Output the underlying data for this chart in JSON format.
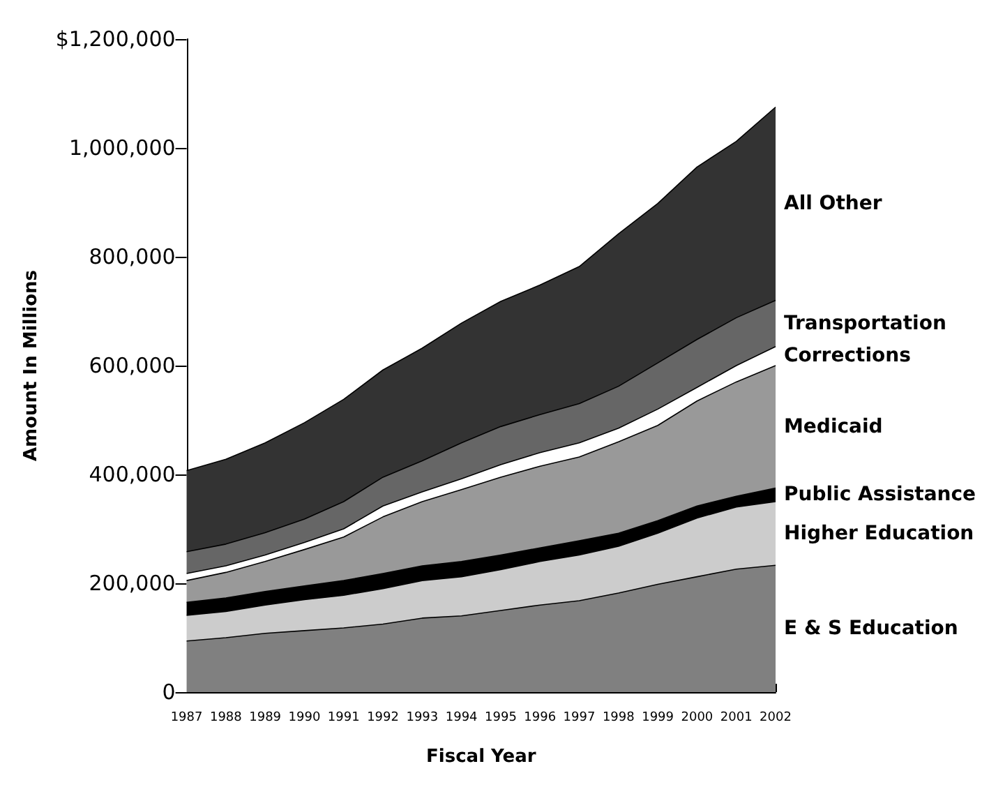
{
  "chart_data": {
    "type": "area",
    "stacked": true,
    "xlabel": "Fiscal Year",
    "ylabel": "Amount In Millions",
    "categories": [
      "1987",
      "1988",
      "1989",
      "1990",
      "1991",
      "1992",
      "1993",
      "1994",
      "1995",
      "1996",
      "1997",
      "1998",
      "1999",
      "2000",
      "2001",
      "2002"
    ],
    "series": [
      {
        "name": "E & S Education",
        "color": "#808080",
        "values": [
          94000,
          100000,
          108000,
          113000,
          118000,
          125000,
          136000,
          140000,
          150000,
          160000,
          168000,
          182000,
          198000,
          212000,
          226000,
          233000
        ]
      },
      {
        "name": "Higher Education",
        "color": "#cccccc",
        "values": [
          47000,
          48000,
          52000,
          57000,
          60000,
          65000,
          69000,
          72000,
          75000,
          80000,
          84000,
          86000,
          94000,
          108000,
          114000,
          117000
        ]
      },
      {
        "name": "Public Assistance",
        "color": "#000000",
        "values": [
          24000,
          25000,
          25000,
          25000,
          27000,
          28000,
          27000,
          28000,
          27000,
          25000,
          26000,
          24000,
          23000,
          22000,
          20000,
          25000
        ]
      },
      {
        "name": "Medicaid",
        "color": "#999999",
        "values": [
          40000,
          47000,
          55000,
          67000,
          80000,
          104000,
          118000,
          132000,
          143000,
          150000,
          154000,
          168000,
          175000,
          193000,
          210000,
          225000
        ]
      },
      {
        "name": "Corrections",
        "color": "#ffffff",
        "values": [
          13000,
          12000,
          12000,
          13000,
          15000,
          20000,
          18000,
          20000,
          23000,
          25000,
          26000,
          25000,
          30000,
          25000,
          30000,
          35000
        ]
      },
      {
        "name": "Transportation",
        "color": "#666666",
        "values": [
          40000,
          40000,
          41000,
          43000,
          50000,
          53000,
          57000,
          66000,
          70000,
          70000,
          72000,
          77000,
          85000,
          88000,
          88000,
          85000
        ]
      },
      {
        "name": "All Other",
        "color": "#333333",
        "values": [
          149000,
          156000,
          165000,
          177000,
          188000,
          197000,
          207000,
          220000,
          230000,
          238000,
          252000,
          280000,
          293000,
          317000,
          324000,
          355000
        ]
      }
    ],
    "ylim": [
      0,
      1200000
    ],
    "yticks": [
      0,
      {
        "value": 200000,
        "label": "200,000"
      },
      {
        "value": 400000,
        "label": "400,000"
      },
      {
        "value": 600000,
        "label": "600,000"
      },
      {
        "value": 800000,
        "label": "800,000"
      },
      {
        "value": 1000000,
        "label": "1,000,000"
      },
      {
        "value": 1200000,
        "label": "$1,200,000"
      }
    ],
    "grid": false,
    "legend": false
  }
}
